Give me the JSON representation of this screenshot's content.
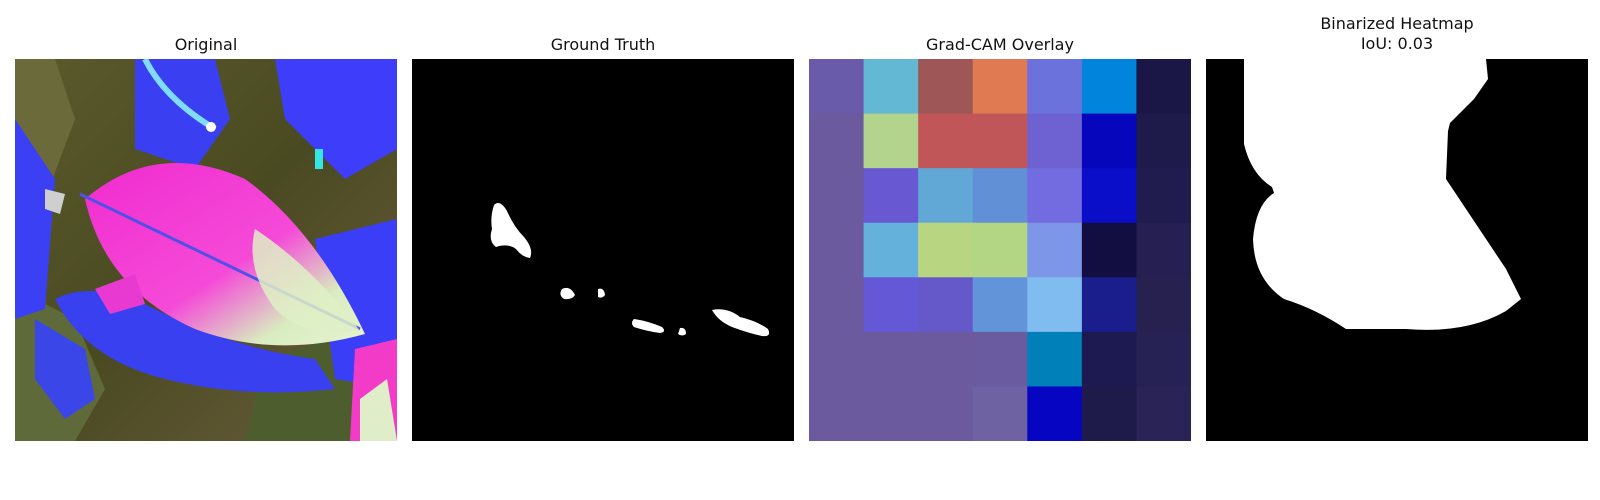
{
  "panels": [
    {
      "title": "Original"
    },
    {
      "title": "Ground Truth"
    },
    {
      "title": "Grad-CAM Overlay"
    },
    {
      "title": "Binarized Heatmap",
      "subtitle": "IoU: 0.03"
    }
  ],
  "gradcam_grid": [
    [
      "#6a5aaa",
      "#63b8d4",
      "#9e5656",
      "#e07a52",
      "#6b72dc",
      "#0084dc",
      "#1a1646"
    ],
    [
      "#6c5a9e",
      "#b2d48c",
      "#c05658",
      "#c05658",
      "#6e62d2",
      "#0606bc",
      "#1e1a4a"
    ],
    [
      "#6c5a9e",
      "#6858d2",
      "#62a8d6",
      "#6290d6",
      "#726ce0",
      "#0a0ec8",
      "#211c4e"
    ],
    [
      "#6c5a9e",
      "#64b2dc",
      "#b8d682",
      "#b2d684",
      "#7e96e8",
      "#120e42",
      "#251f52"
    ],
    [
      "#6c5a9e",
      "#6558d6",
      "#6558c8",
      "#6294da",
      "#80bcf0",
      "#191e8c",
      "#272150"
    ],
    [
      "#6c5a9e",
      "#6c5a9e",
      "#6c5a9e",
      "#6a5aa0",
      "#0080b8",
      "#1c1a50",
      "#272254"
    ],
    [
      "#6c5a9e",
      "#6c5a9e",
      "#6c5a9e",
      "#6e62a2",
      "#0606c2",
      "#1e1a4a",
      "#2a2456"
    ]
  ]
}
